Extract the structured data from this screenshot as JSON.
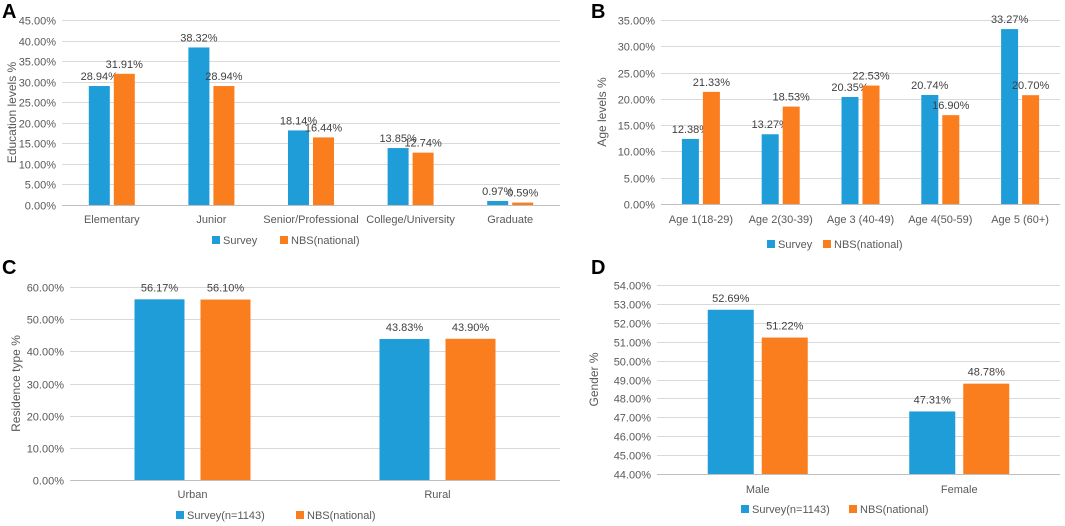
{
  "colors": {
    "survey": "#1f9dd9",
    "nbs": "#fa7d1e"
  },
  "chart_data": [
    {
      "panel": "A",
      "type": "bar",
      "ylabel": "Education levels %",
      "ylim": [
        0,
        45
      ],
      "ystep": 5,
      "categories": [
        "Elementary",
        "Junior",
        "Senior/Professional",
        "College/University",
        "Graduate"
      ],
      "series": [
        {
          "name": "Survey",
          "values": [
            28.94,
            38.32,
            18.14,
            13.85,
            0.97
          ],
          "labels": [
            "28.94%",
            "38.32%",
            "18.14%",
            "13.85%",
            "0.97%"
          ]
        },
        {
          "name": "NBS(national)",
          "values": [
            31.91,
            28.94,
            16.44,
            12.74,
            0.59
          ],
          "labels": [
            "31.91%",
            "28.94%",
            "16.44%",
            "12.74%",
            "0.59%"
          ]
        }
      ],
      "legend": [
        "Survey",
        "NBS(national)"
      ]
    },
    {
      "panel": "B",
      "type": "bar",
      "ylabel": "Age levels %",
      "ylim": [
        0,
        35
      ],
      "ystep": 5,
      "categories": [
        "Age 1(18-29)",
        "Age 2(30-39)",
        "Age 3 (40-49)",
        "Age 4(50-59)",
        "Age 5 (60+)"
      ],
      "series": [
        {
          "name": "Survey",
          "values": [
            12.38,
            13.27,
            20.35,
            20.74,
            33.27
          ],
          "labels": [
            "12.38%",
            "13.27%",
            "20.35%",
            "20.74%",
            "33.27%"
          ]
        },
        {
          "name": "NBS(national)",
          "values": [
            21.33,
            18.53,
            22.53,
            16.9,
            20.7
          ],
          "labels": [
            "21.33%",
            "18.53%",
            "22.53%",
            "16.90%",
            "20.70%"
          ]
        }
      ],
      "legend": [
        "Survey",
        "NBS(national)"
      ]
    },
    {
      "panel": "C",
      "type": "bar",
      "ylabel": "Residence type %",
      "ylim": [
        0,
        60
      ],
      "ystep": 10,
      "categories": [
        "Urban",
        "Rural"
      ],
      "series": [
        {
          "name": "Survey(n=1143)",
          "values": [
            56.17,
            43.83
          ],
          "labels": [
            "56.17%",
            "43.83%"
          ]
        },
        {
          "name": "NBS(national)",
          "values": [
            56.1,
            43.9
          ],
          "labels": [
            "56.10%",
            "43.90%"
          ]
        }
      ],
      "legend": [
        "Survey(n=1143)",
        "NBS(national)"
      ]
    },
    {
      "panel": "D",
      "type": "bar",
      "ylabel": "Gender %",
      "ylim": [
        44,
        54
      ],
      "ystep": 1,
      "categories": [
        "Male",
        "Female"
      ],
      "series": [
        {
          "name": "Survey(n=1143)",
          "values": [
            52.69,
            47.31
          ],
          "labels": [
            "52.69%",
            "47.31%"
          ]
        },
        {
          "name": "NBS(national)",
          "values": [
            51.22,
            48.78
          ],
          "labels": [
            "51.22%",
            "48.78%"
          ]
        }
      ],
      "legend": [
        "Survey(n=1143)",
        "NBS(national)"
      ]
    }
  ]
}
